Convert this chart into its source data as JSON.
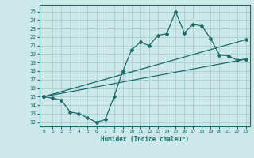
{
  "xlabel": "Humidex (Indice chaleur)",
  "bg_color": "#cce8e8",
  "grid_color": "#aacccc",
  "line_color": "#1a6b6b",
  "xlim": [
    -0.5,
    23.5
  ],
  "ylim": [
    11.5,
    25.8
  ],
  "yticks": [
    12,
    13,
    14,
    15,
    16,
    17,
    18,
    19,
    20,
    21,
    22,
    23,
    24,
    25
  ],
  "xticks": [
    0,
    1,
    2,
    3,
    4,
    5,
    6,
    7,
    8,
    9,
    10,
    11,
    12,
    13,
    14,
    15,
    16,
    17,
    18,
    19,
    20,
    21,
    22,
    23
  ],
  "line1_x": [
    0,
    1,
    2,
    3,
    4,
    5,
    6,
    7,
    8,
    9,
    10,
    11,
    12,
    13,
    14,
    15,
    16,
    17,
    18,
    19,
    20,
    21,
    22,
    23
  ],
  "line1_y": [
    15.0,
    14.8,
    14.6,
    13.2,
    13.0,
    12.5,
    12.0,
    12.3,
    15.0,
    18.0,
    20.5,
    21.4,
    21.0,
    22.2,
    22.4,
    25.0,
    22.5,
    23.5,
    23.3,
    21.8,
    19.9,
    19.8,
    19.3,
    19.4
  ],
  "line2_x": [
    0,
    23
  ],
  "line2_y": [
    15.0,
    21.7
  ],
  "line3_x": [
    0,
    23
  ],
  "line3_y": [
    15.0,
    19.4
  ],
  "marker": "D",
  "markersize": 2,
  "linewidth": 0.9
}
